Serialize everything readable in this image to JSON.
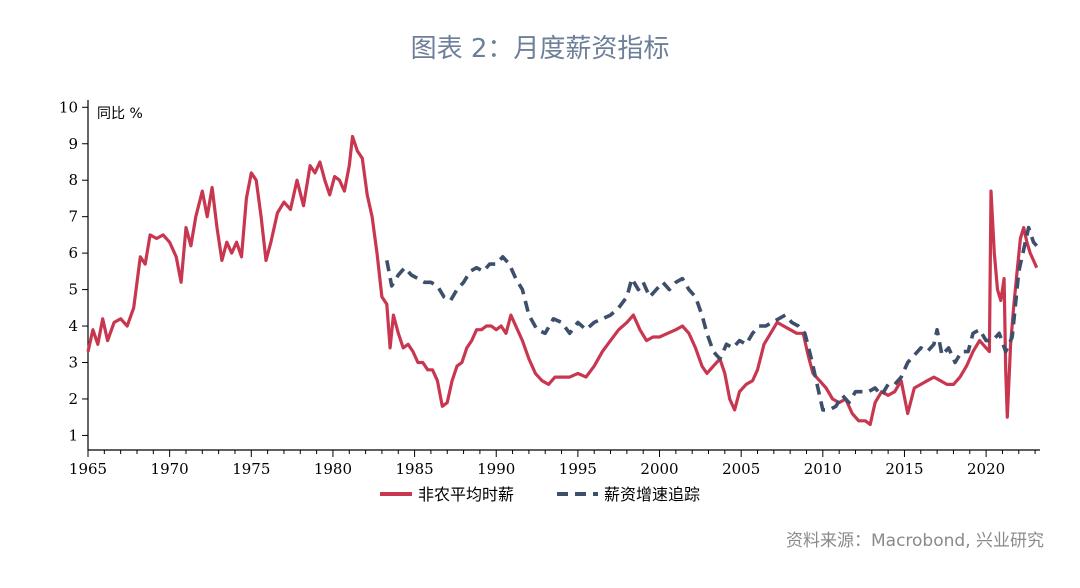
{
  "title": "图表 2：月度薪资指标",
  "source": "资料来源：Macrobond, 兴业研究",
  "chart_data": {
    "type": "line",
    "unit_label": "同比 %",
    "ylim": [
      0.6,
      10.2
    ],
    "xlim": [
      1965,
      2023.3
    ],
    "y_ticks": [
      1,
      2,
      3,
      4,
      5,
      6,
      7,
      8,
      9,
      10
    ],
    "x_ticks": [
      1965,
      1970,
      1975,
      1980,
      1985,
      1990,
      1995,
      2000,
      2005,
      2010,
      2015,
      2020
    ],
    "grid": false,
    "legend_position": "bottom",
    "series": [
      {
        "name": "非农平均时薪",
        "color": "#c8374f",
        "style": "solid",
        "points": [
          [
            1965.0,
            3.3
          ],
          [
            1965.3,
            3.9
          ],
          [
            1965.6,
            3.5
          ],
          [
            1965.9,
            4.2
          ],
          [
            1966.2,
            3.6
          ],
          [
            1966.6,
            4.1
          ],
          [
            1967.0,
            4.2
          ],
          [
            1967.4,
            4.0
          ],
          [
            1967.8,
            4.5
          ],
          [
            1968.2,
            5.9
          ],
          [
            1968.5,
            5.7
          ],
          [
            1968.8,
            6.5
          ],
          [
            1969.2,
            6.4
          ],
          [
            1969.6,
            6.5
          ],
          [
            1970.0,
            6.3
          ],
          [
            1970.4,
            5.9
          ],
          [
            1970.7,
            5.2
          ],
          [
            1971.0,
            6.7
          ],
          [
            1971.3,
            6.2
          ],
          [
            1971.6,
            7.0
          ],
          [
            1972.0,
            7.7
          ],
          [
            1972.3,
            7.0
          ],
          [
            1972.6,
            7.8
          ],
          [
            1972.9,
            6.7
          ],
          [
            1973.2,
            5.8
          ],
          [
            1973.5,
            6.3
          ],
          [
            1973.8,
            6.0
          ],
          [
            1974.1,
            6.3
          ],
          [
            1974.4,
            5.9
          ],
          [
            1974.7,
            7.5
          ],
          [
            1975.0,
            8.2
          ],
          [
            1975.3,
            8.0
          ],
          [
            1975.6,
            7.0
          ],
          [
            1975.9,
            5.8
          ],
          [
            1976.2,
            6.3
          ],
          [
            1976.6,
            7.1
          ],
          [
            1977.0,
            7.4
          ],
          [
            1977.4,
            7.2
          ],
          [
            1977.8,
            8.0
          ],
          [
            1978.2,
            7.3
          ],
          [
            1978.6,
            8.4
          ],
          [
            1978.9,
            8.2
          ],
          [
            1979.2,
            8.5
          ],
          [
            1979.5,
            8.0
          ],
          [
            1979.8,
            7.6
          ],
          [
            1980.1,
            8.1
          ],
          [
            1980.4,
            8.0
          ],
          [
            1980.7,
            7.7
          ],
          [
            1981.0,
            8.4
          ],
          [
            1981.2,
            9.2
          ],
          [
            1981.5,
            8.8
          ],
          [
            1981.8,
            8.6
          ],
          [
            1982.1,
            7.6
          ],
          [
            1982.4,
            7.0
          ],
          [
            1982.7,
            6.0
          ],
          [
            1983.0,
            4.8
          ],
          [
            1983.3,
            4.6
          ],
          [
            1983.5,
            3.4
          ],
          [
            1983.7,
            4.3
          ],
          [
            1984.0,
            3.8
          ],
          [
            1984.3,
            3.4
          ],
          [
            1984.6,
            3.5
          ],
          [
            1984.9,
            3.3
          ],
          [
            1985.2,
            3.0
          ],
          [
            1985.5,
            3.0
          ],
          [
            1985.8,
            2.8
          ],
          [
            1986.1,
            2.8
          ],
          [
            1986.4,
            2.5
          ],
          [
            1986.7,
            1.8
          ],
          [
            1987.0,
            1.9
          ],
          [
            1987.3,
            2.5
          ],
          [
            1987.6,
            2.9
          ],
          [
            1987.9,
            3.0
          ],
          [
            1988.2,
            3.4
          ],
          [
            1988.5,
            3.6
          ],
          [
            1988.8,
            3.9
          ],
          [
            1989.1,
            3.9
          ],
          [
            1989.4,
            4.0
          ],
          [
            1989.7,
            4.0
          ],
          [
            1990.0,
            3.9
          ],
          [
            1990.3,
            4.0
          ],
          [
            1990.6,
            3.8
          ],
          [
            1990.9,
            4.3
          ],
          [
            1991.2,
            4.0
          ],
          [
            1991.6,
            3.6
          ],
          [
            1992.0,
            3.1
          ],
          [
            1992.4,
            2.7
          ],
          [
            1992.8,
            2.5
          ],
          [
            1993.2,
            2.4
          ],
          [
            1993.6,
            2.6
          ],
          [
            1994.0,
            2.6
          ],
          [
            1994.5,
            2.6
          ],
          [
            1995.0,
            2.7
          ],
          [
            1995.5,
            2.6
          ],
          [
            1996.0,
            2.9
          ],
          [
            1996.5,
            3.3
          ],
          [
            1997.0,
            3.6
          ],
          [
            1997.5,
            3.9
          ],
          [
            1998.0,
            4.1
          ],
          [
            1998.4,
            4.3
          ],
          [
            1998.8,
            3.9
          ],
          [
            1999.2,
            3.6
          ],
          [
            1999.6,
            3.7
          ],
          [
            2000.0,
            3.7
          ],
          [
            2000.5,
            3.8
          ],
          [
            2001.0,
            3.9
          ],
          [
            2001.4,
            4.0
          ],
          [
            2001.8,
            3.8
          ],
          [
            2002.2,
            3.4
          ],
          [
            2002.6,
            2.9
          ],
          [
            2002.9,
            2.7
          ],
          [
            2003.3,
            2.9
          ],
          [
            2003.7,
            3.1
          ],
          [
            2004.0,
            2.7
          ],
          [
            2004.3,
            2.0
          ],
          [
            2004.6,
            1.7
          ],
          [
            2004.9,
            2.2
          ],
          [
            2005.3,
            2.4
          ],
          [
            2005.7,
            2.5
          ],
          [
            2006.0,
            2.8
          ],
          [
            2006.4,
            3.5
          ],
          [
            2006.8,
            3.8
          ],
          [
            2007.2,
            4.1
          ],
          [
            2007.6,
            4.0
          ],
          [
            2008.0,
            3.9
          ],
          [
            2008.4,
            3.8
          ],
          [
            2008.8,
            3.8
          ],
          [
            2009.1,
            3.2
          ],
          [
            2009.4,
            2.7
          ],
          [
            2009.8,
            2.5
          ],
          [
            2010.2,
            2.3
          ],
          [
            2010.6,
            2.0
          ],
          [
            2011.0,
            1.9
          ],
          [
            2011.4,
            2.0
          ],
          [
            2011.8,
            1.6
          ],
          [
            2012.2,
            1.4
          ],
          [
            2012.6,
            1.4
          ],
          [
            2012.9,
            1.3
          ],
          [
            2013.2,
            1.9
          ],
          [
            2013.6,
            2.2
          ],
          [
            2014.0,
            2.1
          ],
          [
            2014.4,
            2.2
          ],
          [
            2014.8,
            2.5
          ],
          [
            2015.2,
            1.6
          ],
          [
            2015.6,
            2.3
          ],
          [
            2016.0,
            2.4
          ],
          [
            2016.4,
            2.5
          ],
          [
            2016.8,
            2.6
          ],
          [
            2017.2,
            2.5
          ],
          [
            2017.6,
            2.4
          ],
          [
            2018.0,
            2.4
          ],
          [
            2018.4,
            2.6
          ],
          [
            2018.8,
            2.9
          ],
          [
            2019.2,
            3.3
          ],
          [
            2019.6,
            3.6
          ],
          [
            2020.0,
            3.4
          ],
          [
            2020.2,
            3.3
          ],
          [
            2020.3,
            7.7
          ],
          [
            2020.5,
            6.0
          ],
          [
            2020.7,
            5.0
          ],
          [
            2020.9,
            4.7
          ],
          [
            2021.1,
            5.3
          ],
          [
            2021.2,
            2.8
          ],
          [
            2021.3,
            1.5
          ],
          [
            2021.5,
            3.5
          ],
          [
            2021.7,
            4.6
          ],
          [
            2021.9,
            5.5
          ],
          [
            2022.1,
            6.4
          ],
          [
            2022.3,
            6.7
          ],
          [
            2022.5,
            6.3
          ],
          [
            2022.7,
            6.0
          ],
          [
            2022.9,
            5.8
          ],
          [
            2023.1,
            5.6
          ]
        ]
      },
      {
        "name": "薪资增速追踪",
        "color": "#3d4f6b",
        "style": "dashed",
        "points": [
          [
            1983.3,
            5.8
          ],
          [
            1983.6,
            5.1
          ],
          [
            1984.0,
            5.4
          ],
          [
            1984.4,
            5.6
          ],
          [
            1984.8,
            5.4
          ],
          [
            1985.2,
            5.3
          ],
          [
            1985.6,
            5.2
          ],
          [
            1986.0,
            5.2
          ],
          [
            1986.4,
            5.1
          ],
          [
            1986.8,
            4.8
          ],
          [
            1987.2,
            4.7
          ],
          [
            1987.6,
            5.0
          ],
          [
            1988.0,
            5.2
          ],
          [
            1988.4,
            5.5
          ],
          [
            1988.8,
            5.6
          ],
          [
            1989.2,
            5.5
          ],
          [
            1989.6,
            5.7
          ],
          [
            1990.0,
            5.7
          ],
          [
            1990.4,
            5.9
          ],
          [
            1990.8,
            5.7
          ],
          [
            1991.2,
            5.3
          ],
          [
            1991.6,
            5.0
          ],
          [
            1992.0,
            4.3
          ],
          [
            1992.5,
            3.9
          ],
          [
            1993.0,
            3.8
          ],
          [
            1993.5,
            4.2
          ],
          [
            1994.0,
            4.1
          ],
          [
            1994.5,
            3.8
          ],
          [
            1995.0,
            4.1
          ],
          [
            1995.5,
            3.9
          ],
          [
            1996.0,
            4.1
          ],
          [
            1996.5,
            4.2
          ],
          [
            1997.0,
            4.3
          ],
          [
            1997.5,
            4.5
          ],
          [
            1998.0,
            4.8
          ],
          [
            1998.3,
            5.3
          ],
          [
            1998.7,
            5.0
          ],
          [
            1999.0,
            5.2
          ],
          [
            1999.4,
            4.8
          ],
          [
            1999.8,
            5.0
          ],
          [
            2000.2,
            5.2
          ],
          [
            2000.6,
            5.0
          ],
          [
            2001.0,
            5.2
          ],
          [
            2001.4,
            5.3
          ],
          [
            2001.8,
            5.0
          ],
          [
            2002.2,
            4.8
          ],
          [
            2002.6,
            4.3
          ],
          [
            2002.9,
            3.8
          ],
          [
            2003.3,
            3.3
          ],
          [
            2003.7,
            3.1
          ],
          [
            2004.1,
            3.5
          ],
          [
            2004.5,
            3.4
          ],
          [
            2004.9,
            3.6
          ],
          [
            2005.3,
            3.5
          ],
          [
            2005.7,
            3.8
          ],
          [
            2006.1,
            4.0
          ],
          [
            2006.5,
            4.0
          ],
          [
            2006.9,
            4.1
          ],
          [
            2007.3,
            4.2
          ],
          [
            2007.7,
            4.3
          ],
          [
            2008.1,
            4.1
          ],
          [
            2008.5,
            4.0
          ],
          [
            2008.9,
            3.8
          ],
          [
            2009.3,
            3.1
          ],
          [
            2009.7,
            2.3
          ],
          [
            2010.0,
            1.7
          ],
          [
            2010.4,
            1.7
          ],
          [
            2010.8,
            1.8
          ],
          [
            2011.2,
            2.1
          ],
          [
            2011.6,
            1.9
          ],
          [
            2012.0,
            2.2
          ],
          [
            2012.4,
            2.2
          ],
          [
            2012.8,
            2.2
          ],
          [
            2013.2,
            2.3
          ],
          [
            2013.6,
            2.1
          ],
          [
            2014.0,
            2.4
          ],
          [
            2014.4,
            2.4
          ],
          [
            2014.8,
            2.6
          ],
          [
            2015.2,
            3.0
          ],
          [
            2015.6,
            3.2
          ],
          [
            2016.0,
            3.4
          ],
          [
            2016.4,
            3.3
          ],
          [
            2016.8,
            3.5
          ],
          [
            2017.0,
            3.9
          ],
          [
            2017.3,
            3.2
          ],
          [
            2017.7,
            3.4
          ],
          [
            2018.1,
            3.0
          ],
          [
            2018.5,
            3.3
          ],
          [
            2018.9,
            3.3
          ],
          [
            2019.2,
            3.8
          ],
          [
            2019.6,
            3.9
          ],
          [
            2020.0,
            3.6
          ],
          [
            2020.4,
            3.6
          ],
          [
            2020.8,
            3.8
          ],
          [
            2021.2,
            3.3
          ],
          [
            2021.6,
            3.7
          ],
          [
            2022.0,
            5.5
          ],
          [
            2022.3,
            6.1
          ],
          [
            2022.6,
            6.7
          ],
          [
            2022.9,
            6.3
          ],
          [
            2023.1,
            6.2
          ]
        ]
      }
    ]
  }
}
